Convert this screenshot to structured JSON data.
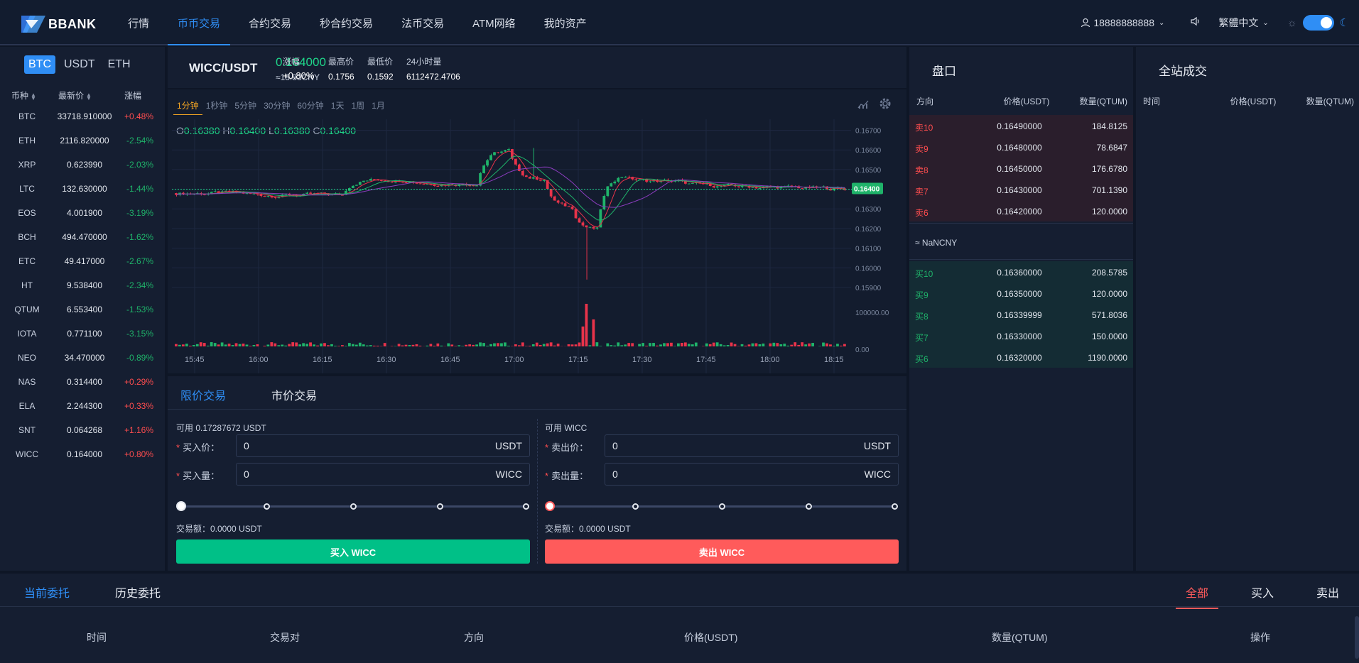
{
  "brand": {
    "name": "BBANK"
  },
  "nav": {
    "items": [
      "行情",
      "币币交易",
      "合约交易",
      "秒合约交易",
      "法币交易",
      "ATM网络",
      "我的资产"
    ],
    "user": "18888888888",
    "language": "繁體中文"
  },
  "market_list": {
    "tabs": [
      "BTC",
      "USDT",
      "ETH"
    ],
    "active_tab": "BTC",
    "headers": {
      "symbol": "币种",
      "price": "最新价",
      "change": "涨幅"
    },
    "rows": [
      {
        "symbol": "BTC",
        "price": "33718.910000",
        "change": "+0.48%",
        "dir": "up"
      },
      {
        "symbol": "ETH",
        "price": "2116.820000",
        "change": "-2.54%",
        "dir": "down"
      },
      {
        "symbol": "XRP",
        "price": "0.623990",
        "change": "-2.03%",
        "dir": "down"
      },
      {
        "symbol": "LTC",
        "price": "132.630000",
        "change": "-1.44%",
        "dir": "down"
      },
      {
        "symbol": "EOS",
        "price": "4.001900",
        "change": "-3.19%",
        "dir": "down"
      },
      {
        "symbol": "BCH",
        "price": "494.470000",
        "change": "-1.62%",
        "dir": "down"
      },
      {
        "symbol": "ETC",
        "price": "49.417000",
        "change": "-2.67%",
        "dir": "down"
      },
      {
        "symbol": "HT",
        "price": "9.538400",
        "change": "-2.34%",
        "dir": "down"
      },
      {
        "symbol": "QTUM",
        "price": "6.553400",
        "change": "-1.53%",
        "dir": "down"
      },
      {
        "symbol": "IOTA",
        "price": "0.771100",
        "change": "-3.15%",
        "dir": "down"
      },
      {
        "symbol": "NEO",
        "price": "34.470000",
        "change": "-0.89%",
        "dir": "down"
      },
      {
        "symbol": "NAS",
        "price": "0.314400",
        "change": "+0.29%",
        "dir": "up"
      },
      {
        "symbol": "ELA",
        "price": "2.244300",
        "change": "+0.33%",
        "dir": "up"
      },
      {
        "symbol": "SNT",
        "price": "0.064268",
        "change": "+1.16%",
        "dir": "up"
      },
      {
        "symbol": "WICC",
        "price": "0.164000",
        "change": "+0.80%",
        "dir": "up"
      }
    ]
  },
  "ticker": {
    "pair": "WICC/USDT",
    "last": "0.164000",
    "cny": "≈18.83CNY",
    "change_label": "涨幅",
    "change": "+0.80%",
    "high_label": "最高价",
    "high": "0.1756",
    "low_label": "最低价",
    "low": "0.1592",
    "vol_label": "24小时量",
    "vol": "6112472.4706"
  },
  "chart": {
    "intervals": [
      "1分钟",
      "1秒钟",
      "5分钟",
      "30分钟",
      "60分钟",
      "1天",
      "1周",
      "1月"
    ],
    "active_interval": "1分钟",
    "ohlc": {
      "o": "0.16380",
      "h": "0.16400",
      "l": "0.16380",
      "c": "0.16400"
    },
    "y_ticks": [
      "0.16700",
      "0.16600",
      "0.16500",
      "0.16400",
      "0.16300",
      "0.16200",
      "0.16100",
      "0.16000",
      "0.15900"
    ],
    "y_range": [
      0.1586,
      0.1672
    ],
    "vol_ticks": [
      "100000.00",
      "0.00"
    ],
    "current_price": "0.16400",
    "x_ticks": [
      "15:45",
      "16:00",
      "16:15",
      "16:30",
      "16:45",
      "17:00",
      "17:15",
      "17:30",
      "17:45",
      "18:00",
      "18:15"
    ],
    "colors": {
      "up": "#1fb36a",
      "down": "#e8334a",
      "ma1": "#e8334a",
      "ma2": "#1fb36a",
      "ma3": "#8c3dbf"
    }
  },
  "trade": {
    "tabs": [
      "限价交易",
      "市价交易"
    ],
    "active_tab": "限价交易",
    "buy": {
      "available": "可用 0.17287672 USDT",
      "price_label": "买入价",
      "price_value": "0",
      "price_unit": "USDT",
      "qty_label": "买入量",
      "qty_value": "0",
      "qty_unit": "WICC",
      "amount": "交易额：0.0000 USDT",
      "button": "买入 WICC"
    },
    "sell": {
      "available": "可用 WICC",
      "price_label": "卖出价",
      "price_value": "0",
      "price_unit": "USDT",
      "qty_label": "卖出量",
      "qty_value": "0",
      "qty_unit": "WICC",
      "amount": "交易额：0.0000 USDT",
      "button": "卖出 WICC"
    }
  },
  "orderbook": {
    "title": "盘口",
    "headers": {
      "side": "方向",
      "price": "价格(USDT)",
      "qty": "数量(QTUM)"
    },
    "asks": [
      {
        "side": "卖10",
        "price": "0.16490000",
        "qty": "184.8125"
      },
      {
        "side": "卖9",
        "price": "0.16480000",
        "qty": "78.6847"
      },
      {
        "side": "卖8",
        "price": "0.16450000",
        "qty": "176.6780"
      },
      {
        "side": "卖7",
        "price": "0.16430000",
        "qty": "701.1390"
      },
      {
        "side": "卖6",
        "price": "0.16420000",
        "qty": "120.0000"
      }
    ],
    "mid": "≈ NaNCNY",
    "bids": [
      {
        "side": "买10",
        "price": "0.16360000",
        "qty": "208.5785"
      },
      {
        "side": "买9",
        "price": "0.16350000",
        "qty": "120.0000"
      },
      {
        "side": "买8",
        "price": "0.16339999",
        "qty": "571.8036"
      },
      {
        "side": "买7",
        "price": "0.16330000",
        "qty": "150.0000"
      },
      {
        "side": "买6",
        "price": "0.16320000",
        "qty": "1190.0000"
      }
    ]
  },
  "deals": {
    "title": "全站成交",
    "headers": {
      "time": "时间",
      "price": "价格(USDT)",
      "qty": "数量(QTUM)"
    }
  },
  "orders": {
    "tabs": [
      "当前委托",
      "历史委托"
    ],
    "active_tab": "当前委托",
    "filters": [
      "全部",
      "买入",
      "卖出"
    ],
    "active_filter": "全部",
    "columns": [
      "时间",
      "交易对",
      "方向",
      "价格(USDT)",
      "数量(QTUM)",
      "操作"
    ]
  }
}
